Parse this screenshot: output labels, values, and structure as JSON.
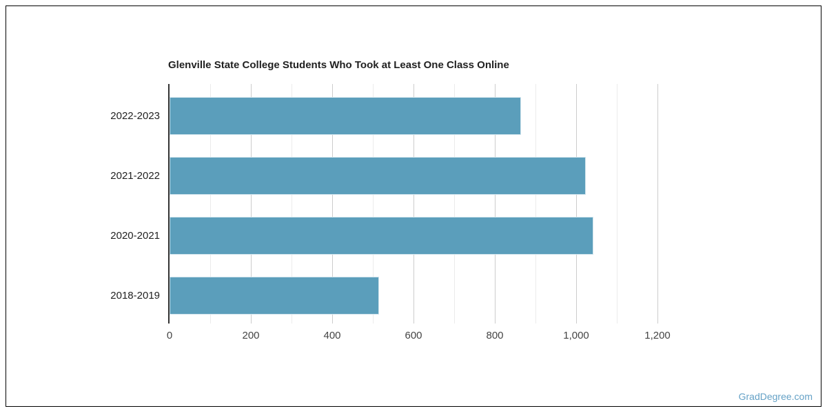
{
  "chart_data": {
    "type": "bar",
    "orientation": "horizontal",
    "title": "Glenville State College Students Who Took at Least One Class Online",
    "categories": [
      "2022-2023",
      "2021-2022",
      "2020-2021",
      "2018-2019"
    ],
    "values": [
      864,
      1024,
      1042,
      515
    ],
    "xlabel": "",
    "ylabel": "",
    "xlim": [
      0,
      1200
    ],
    "x_ticks": [
      0,
      200,
      400,
      600,
      800,
      1000,
      1200
    ],
    "x_tick_labels": [
      "0",
      "200",
      "400",
      "600",
      "800",
      "1,000",
      "1,200"
    ],
    "minor_gridline_interval": 100,
    "grid": true,
    "legend_position": "none",
    "bar_color": "#5b9ebb",
    "major_gridline_color": "#cccccc",
    "minor_gridline_color": "#ebebeb",
    "axis_line_color": "#333333",
    "title_color": "#212121",
    "category_label_color": "#222222",
    "tick_label_color": "#444444"
  },
  "footer": {
    "watermark": "GradDegree.com",
    "watermark_color": "#64a1c6"
  }
}
